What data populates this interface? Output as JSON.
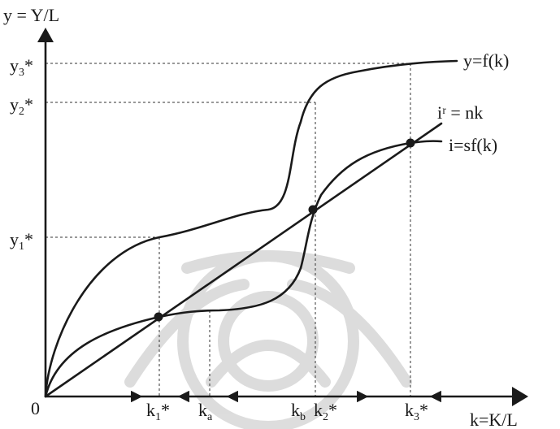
{
  "axes": {
    "y_label": "y = Y/L",
    "x_label": "k=K/L",
    "origin": "0"
  },
  "curves": {
    "production": "y=f(k)",
    "investment": "i=sf(k)",
    "break_even": "iʳ = nk"
  },
  "y_ticks": {
    "y1": {
      "main": "y",
      "sub": "1",
      "star": "*"
    },
    "y2": {
      "main": "y",
      "sub": "2",
      "star": "*"
    },
    "y3": {
      "main": "y",
      "sub": "3",
      "star": "*"
    }
  },
  "x_ticks": {
    "k1": {
      "main": "k",
      "sub": "1",
      "star": "*"
    },
    "ka": {
      "main": "k",
      "sub": "a"
    },
    "kb": {
      "main": "k",
      "sub": "b"
    },
    "k2": {
      "main": "k",
      "sub": "2",
      "star": "*"
    },
    "k3": {
      "main": "k",
      "sub": "3",
      "star": "*"
    }
  }
}
